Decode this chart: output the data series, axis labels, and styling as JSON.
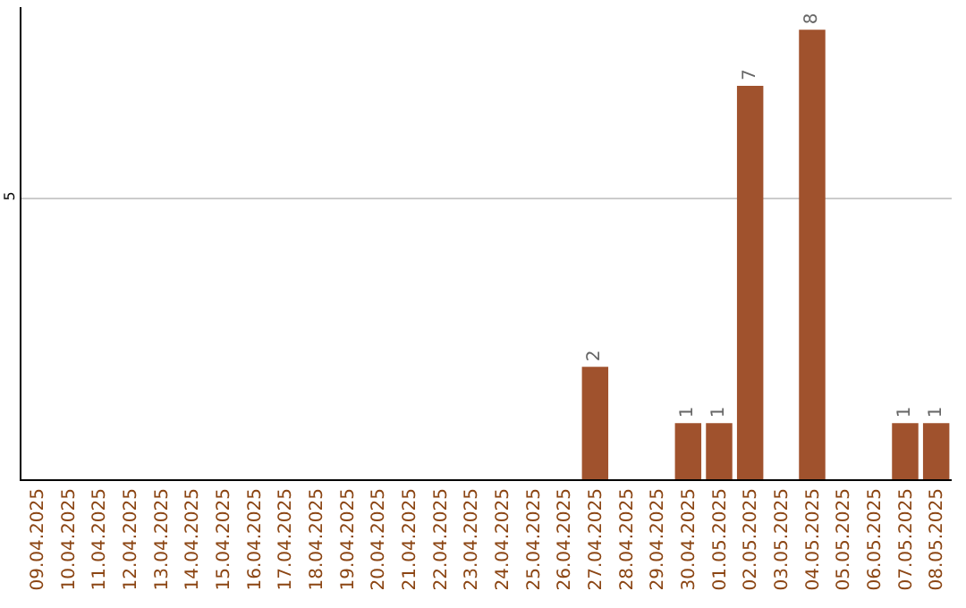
{
  "chart_data": {
    "type": "bar",
    "categories": [
      "09.04.2025",
      "10.04.2025",
      "11.04.2025",
      "12.04.2025",
      "13.04.2025",
      "14.04.2025",
      "15.04.2025",
      "16.04.2025",
      "17.04.2025",
      "18.04.2025",
      "19.04.2025",
      "20.04.2025",
      "21.04.2025",
      "22.04.2025",
      "23.04.2025",
      "24.04.2025",
      "25.04.2025",
      "26.04.2025",
      "27.04.2025",
      "28.04.2025",
      "29.04.2025",
      "30.04.2025",
      "01.05.2025",
      "02.05.2025",
      "03.05.2025",
      "04.05.2025",
      "05.05.2025",
      "06.05.2025",
      "07.05.2025",
      "08.05.2025"
    ],
    "values": [
      null,
      null,
      null,
      null,
      null,
      null,
      null,
      null,
      null,
      null,
      null,
      null,
      null,
      null,
      null,
      null,
      null,
      null,
      2,
      null,
      null,
      1,
      1,
      7,
      null,
      8,
      null,
      null,
      1,
      1
    ],
    "data_labels": true,
    "color": "#a0522d",
    "ylim": [
      0,
      8.4
    ],
    "yticks": [
      5
    ],
    "grid": "y"
  }
}
